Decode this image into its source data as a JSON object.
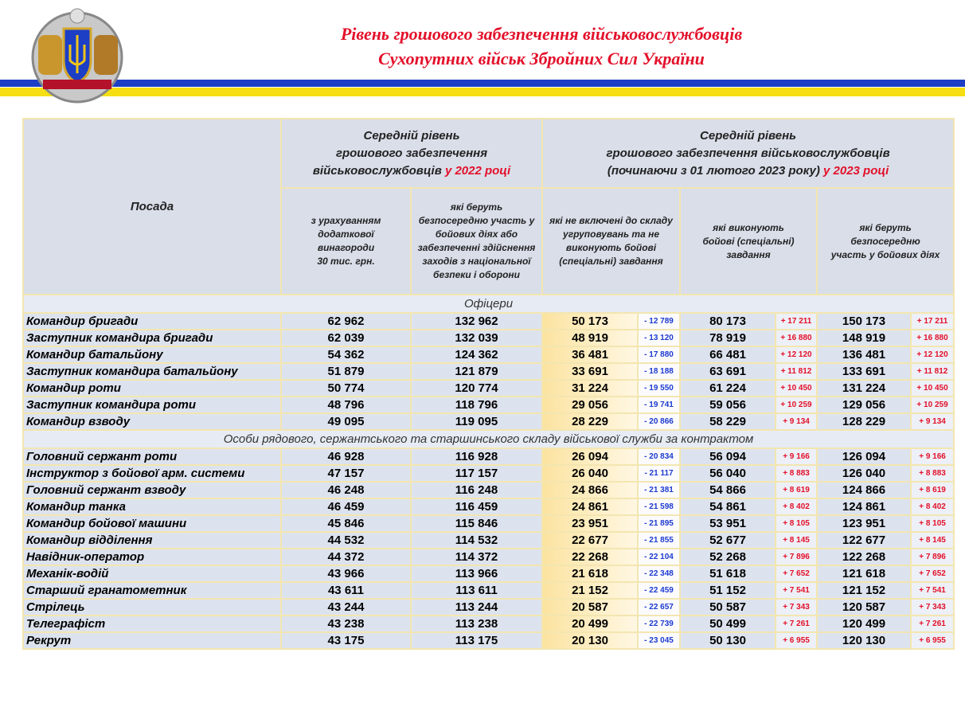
{
  "header": {
    "title": [
      "Рівень грошового забезпечення військовослужбовців",
      "Сухопутних військ Збройних Сил України"
    ]
  },
  "table": {
    "position_header": "Посада",
    "group_2022": {
      "lines": [
        "Середній рівень",
        "грошового забезпечення",
        "військовослужбовців"
      ],
      "highlight": "у 2022 році"
    },
    "group_2023": {
      "lines": [
        "Середній рівень",
        "грошового забезпечення військовослужбовців",
        "(починаючи з 01 лютого 2023 року)"
      ],
      "highlight": "у 2023 році"
    },
    "subheaders": [
      [
        "з урахуванням",
        "додаткової",
        "винагороди",
        "30 тис. грн."
      ],
      [
        "які беруть",
        "безпосередню участь у",
        "бойових діях або",
        "забезпеченні здійснення",
        "заходів з національної",
        "безпеки і оборони"
      ],
      [
        "які не включені до складу",
        "угруповувань та не",
        "виконують бойові",
        "(спеціальні) завдання"
      ],
      [
        "які виконують",
        "бойові (спеціальні)",
        "завдання"
      ],
      [
        "які беруть",
        "безпосередню",
        "участь у бойових діях"
      ]
    ],
    "sections": [
      {
        "title": "Офіцери",
        "rows": [
          [
            "Командир бригади",
            "62 962",
            "132 962",
            "50 173",
            "- 12 789",
            "80 173",
            "+ 17 211",
            "150 173",
            "+ 17 211"
          ],
          [
            "Заступник командира бригади",
            "62 039",
            "132 039",
            "48 919",
            "- 13 120",
            "78 919",
            "+ 16 880",
            "148 919",
            "+ 16 880"
          ],
          [
            "Командир батальйону",
            "54 362",
            "124 362",
            "36 481",
            "- 17 880",
            "66 481",
            "+ 12 120",
            "136 481",
            "+ 12 120"
          ],
          [
            "Заступник командира батальйону",
            "51 879",
            "121 879",
            "33 691",
            "- 18 188",
            "63 691",
            "+ 11 812",
            "133 691",
            "+ 11 812"
          ],
          [
            "Командир роти",
            "50 774",
            "120 774",
            "31 224",
            "- 19 550",
            "61 224",
            "+ 10 450",
            "131 224",
            "+ 10 450"
          ],
          [
            "Заступник командира роти",
            "48 796",
            "118 796",
            "29 056",
            "- 19 741",
            "59 056",
            "+ 10 259",
            "129 056",
            "+ 10 259"
          ],
          [
            "Командир взводу",
            "49 095",
            "119 095",
            "28 229",
            "- 20 866",
            "58 229",
            "+ 9 134",
            "128 229",
            "+ 9 134"
          ]
        ]
      },
      {
        "title": "Особи рядового, сержантського та старшинського складу військової служби за контрактом",
        "rows": [
          [
            "Головний сержант роти",
            "46 928",
            "116 928",
            "26 094",
            "- 20 834",
            "56 094",
            "+ 9 166",
            "126 094",
            "+ 9 166"
          ],
          [
            "Інструктор з бойової арм. системи",
            "47 157",
            "117 157",
            "26 040",
            "- 21 117",
            "56 040",
            "+ 8 883",
            "126 040",
            "+ 8 883"
          ],
          [
            "Головний сержант взводу",
            "46 248",
            "116 248",
            "24 866",
            "- 21 381",
            "54 866",
            "+ 8 619",
            "124 866",
            "+ 8 619"
          ],
          [
            "Командир танка",
            "46 459",
            "116 459",
            "24 861",
            "- 21 598",
            "54 861",
            "+ 8 402",
            "124 861",
            "+ 8 402"
          ],
          [
            "Командир бойової машини",
            "45 846",
            "115 846",
            "23 951",
            "- 21 895",
            "53 951",
            "+ 8 105",
            "123 951",
            "+ 8 105"
          ],
          [
            "Командир відділення",
            "44 532",
            "114 532",
            "22 677",
            "- 21 855",
            "52 677",
            "+ 8 145",
            "122 677",
            "+ 8 145"
          ],
          [
            "Навідник-оператор",
            "44 372",
            "114 372",
            "22 268",
            "- 22 104",
            "52 268",
            "+ 7 896",
            "122 268",
            "+ 7 896"
          ],
          [
            "Механік-водій",
            "43 966",
            "113 966",
            "21 618",
            "- 22 348",
            "51 618",
            "+ 7 652",
            "121 618",
            "+ 7 652"
          ],
          [
            "Старший гранатометник",
            "43 611",
            "113 611",
            "21 152",
            "- 22 459",
            "51 152",
            "+ 7 541",
            "121 152",
            "+ 7 541"
          ],
          [
            "Стрілець",
            "43 244",
            "113 244",
            "20 587",
            "- 22 657",
            "50 587",
            "+ 7 343",
            "120 587",
            "+ 7 343"
          ],
          [
            "Телеграфіст",
            "43 238",
            "113 238",
            "20 499",
            "- 22 739",
            "50 499",
            "+ 7 261",
            "120 499",
            "+ 7 261"
          ],
          [
            "Рекрут",
            "43 175",
            "113 175",
            "20 130",
            "- 23 045",
            "50 130",
            "+ 6 955",
            "120 130",
            "+ 6 955"
          ]
        ]
      }
    ]
  }
}
